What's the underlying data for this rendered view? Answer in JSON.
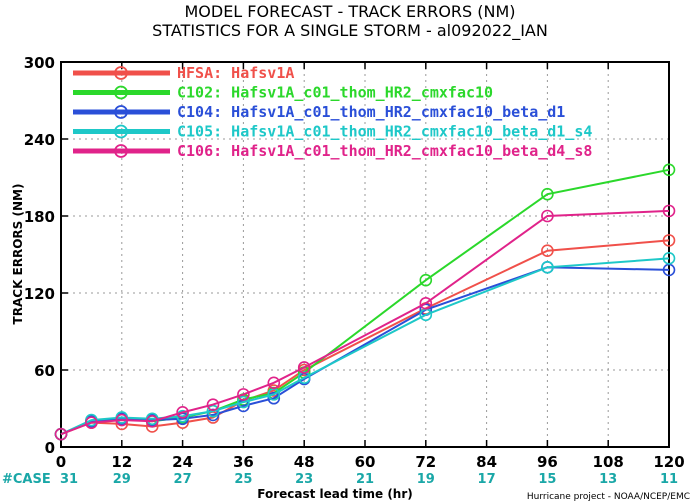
{
  "chart_data": {
    "type": "line",
    "title": "MODEL FORECAST - TRACK ERRORS (NM)",
    "subtitle": "STATISTICS FOR A SINGLE STORM - al092022_IAN",
    "xlabel": "Forecast lead time (hr)",
    "ylabel": "TRACK ERRORS (NM)",
    "xlim": [
      0,
      120
    ],
    "ylim": [
      0,
      300
    ],
    "x_ticks": [
      "0",
      "12",
      "24",
      "36",
      "48",
      "60",
      "72",
      "84",
      "96",
      "108",
      "120"
    ],
    "y_ticks": [
      "0",
      "60",
      "120",
      "180",
      "240",
      "300"
    ],
    "grid": true,
    "legend_position": "top-left",
    "case_label": "#CASE",
    "case_counts": [
      "31",
      "29",
      "27",
      "25",
      "23",
      "21",
      "19",
      "17",
      "15",
      "13",
      "11"
    ],
    "case_x": [
      0,
      12,
      24,
      36,
      48,
      60,
      72,
      84,
      96,
      108,
      120
    ],
    "credit": "Hurricane project - NOAA/NCEP/EMC",
    "series": [
      {
        "name": "HFSA: Hafsv1A",
        "color": "#f0504a",
        "x": [
          0,
          6,
          12,
          18,
          24,
          30,
          36,
          42,
          48,
          72,
          96,
          120
        ],
        "y": [
          10,
          19,
          18,
          16,
          19,
          23,
          36,
          44,
          60,
          108,
          153,
          161
        ]
      },
      {
        "name": "C102: Hafsv1A_c01_thom_HR2_cmxfac10",
        "color": "#2bd82b",
        "x": [
          0,
          6,
          12,
          18,
          24,
          30,
          36,
          42,
          48,
          72,
          96,
          120
        ],
        "y": [
          10,
          20,
          22,
          20,
          23,
          28,
          37,
          42,
          58,
          130,
          197,
          216
        ]
      },
      {
        "name": "C104: Hafsv1A_c01_thom_HR2_cmxfac10_beta_d1",
        "color": "#2a4fd8",
        "x": [
          0,
          6,
          12,
          18,
          24,
          30,
          36,
          42,
          48,
          72,
          96,
          120
        ],
        "y": [
          10,
          20,
          22,
          21,
          22,
          25,
          32,
          38,
          53,
          107,
          140,
          138
        ]
      },
      {
        "name": "C105: Hafsv1A_c01_thom_HR2_cmxfac10_beta_d1_s4",
        "color": "#1ec8c8",
        "x": [
          0,
          6,
          12,
          18,
          24,
          30,
          36,
          42,
          48,
          72,
          96,
          120
        ],
        "y": [
          10,
          21,
          23,
          22,
          24,
          28,
          35,
          41,
          54,
          103,
          140,
          147
        ]
      },
      {
        "name": "C106: Hafsv1A_c01_thom_HR2_cmxfac10_beta_d4_s8",
        "color": "#e0238a",
        "x": [
          0,
          6,
          12,
          18,
          24,
          30,
          36,
          42,
          48,
          72,
          96,
          120
        ],
        "y": [
          10,
          19,
          21,
          20,
          27,
          33,
          41,
          50,
          62,
          112,
          180,
          184
        ]
      }
    ]
  }
}
